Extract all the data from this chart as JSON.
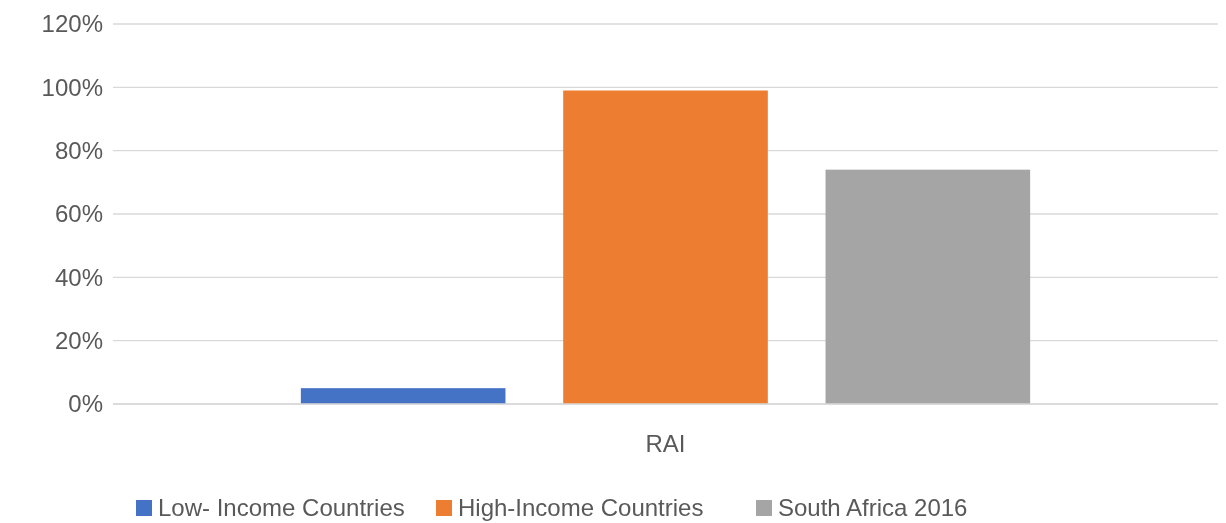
{
  "chart_data": {
    "type": "bar",
    "categories": [
      "RAI"
    ],
    "series": [
      {
        "name": "Low- Income Countries",
        "color": "#4472c4",
        "values": [
          5
        ]
      },
      {
        "name": "High-Income Countries",
        "color": "#ed7d31",
        "values": [
          99
        ]
      },
      {
        "name": "South Africa 2016",
        "color": "#a5a5a5",
        "values": [
          74
        ]
      }
    ],
    "ylim": [
      0,
      120
    ],
    "yticks": [
      {
        "value": 0,
        "label": "0%"
      },
      {
        "value": 20,
        "label": "20%"
      },
      {
        "value": 40,
        "label": "40%"
      },
      {
        "value": 60,
        "label": "60%"
      },
      {
        "value": 80,
        "label": "80%"
      },
      {
        "value": 100,
        "label": "100%"
      },
      {
        "value": 120,
        "label": "120%"
      }
    ],
    "grid": "y",
    "legend": "bottom"
  }
}
